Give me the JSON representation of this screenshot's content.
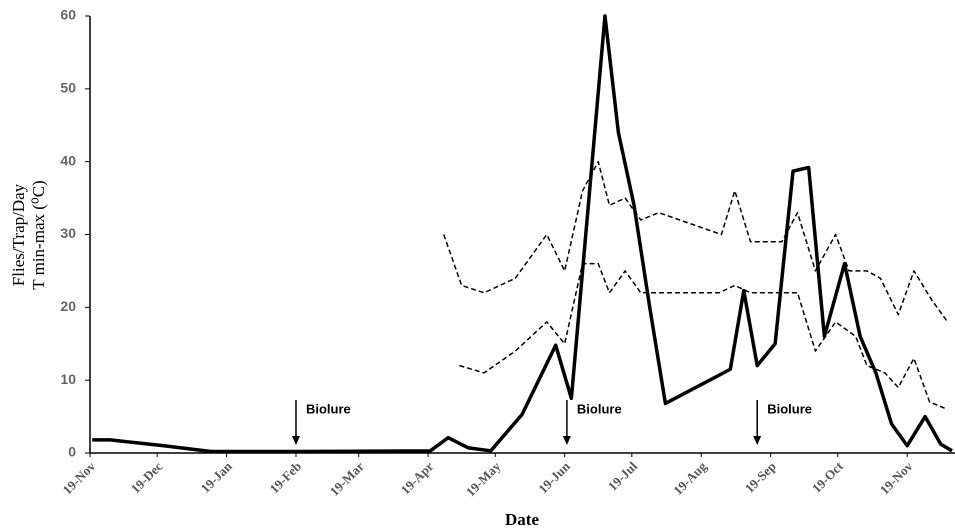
{
  "chart_data": {
    "type": "line",
    "y_label_lines": [
      "Flies/Trap/Day",
      "T min-max (⁰C)"
    ],
    "x_label": "Date",
    "xlim": [
      0,
      385
    ],
    "xticks": [
      {
        "value": 0,
        "label": "19-Nov"
      },
      {
        "value": 30,
        "label": "19-Dec"
      },
      {
        "value": 61,
        "label": "19-Jan"
      },
      {
        "value": 92,
        "label": "19-Feb"
      },
      {
        "value": 120,
        "label": "19-Mar"
      },
      {
        "value": 151,
        "label": "19-Apr"
      },
      {
        "value": 181,
        "label": "19-May"
      },
      {
        "value": 212,
        "label": "19-Jun"
      },
      {
        "value": 242,
        "label": "19-Jul"
      },
      {
        "value": 273,
        "label": "19-Aug"
      },
      {
        "value": 304,
        "label": "19-Sep"
      },
      {
        "value": 334,
        "label": "19-Oct"
      },
      {
        "value": 365,
        "label": "19-Nov"
      }
    ],
    "ylim": [
      0,
      60
    ],
    "yticks": [
      0,
      10,
      20,
      30,
      40,
      50,
      60
    ],
    "series": [
      {
        "color": "#000000",
        "style": "solid",
        "x": [
          1,
          9,
          33,
          54,
          94,
          152,
          160,
          169,
          179,
          193,
          208,
          215,
          230,
          236,
          243,
          250,
          257,
          286,
          292,
          298,
          306,
          314,
          321,
          328,
          337,
          344,
          351,
          358,
          365,
          373,
          380,
          385
        ],
        "values": [
          1.8,
          1.8,
          1.0,
          0.2,
          0.2,
          0.3,
          2.1,
          0.7,
          0.3,
          5.3,
          14.8,
          7.5,
          60,
          44,
          34,
          20,
          6.8,
          11.5,
          22.3,
          12,
          15,
          38.7,
          39.2,
          16,
          26,
          16,
          11,
          4,
          1,
          5,
          1.2,
          0.3
        ]
      },
      {
        "color": "#000000",
        "style": "dashed",
        "x": [
          158,
          166,
          176,
          190,
          204,
          212,
          220,
          227,
          232,
          239,
          246,
          254,
          282,
          288,
          295,
          309,
          316,
          324,
          333,
          339,
          347,
          353,
          361,
          368,
          376,
          383
        ],
        "values": [
          30,
          23,
          22,
          24,
          30,
          25,
          36,
          40,
          34,
          35,
          32,
          33,
          30,
          36,
          29,
          29,
          33,
          25,
          30,
          25,
          25,
          24,
          19,
          25,
          21,
          18
        ]
      },
      {
        "color": "#000000",
        "style": "dashed",
        "x": [
          165,
          176,
          190,
          204,
          212,
          220,
          227,
          232,
          239,
          246,
          281,
          288,
          295,
          316,
          324,
          333,
          342,
          347,
          355,
          361,
          368,
          375,
          383
        ],
        "values": [
          12,
          11,
          14,
          18,
          15,
          26,
          26,
          22,
          25,
          22,
          22,
          23,
          22,
          22,
          14,
          18,
          16,
          12,
          11,
          9,
          13,
          7,
          6
        ]
      }
    ],
    "annotations": [
      {
        "text": "Biolure",
        "x": 92
      },
      {
        "text": "Biolure",
        "x": 213
      },
      {
        "text": "Biolure",
        "x": 298
      }
    ]
  }
}
